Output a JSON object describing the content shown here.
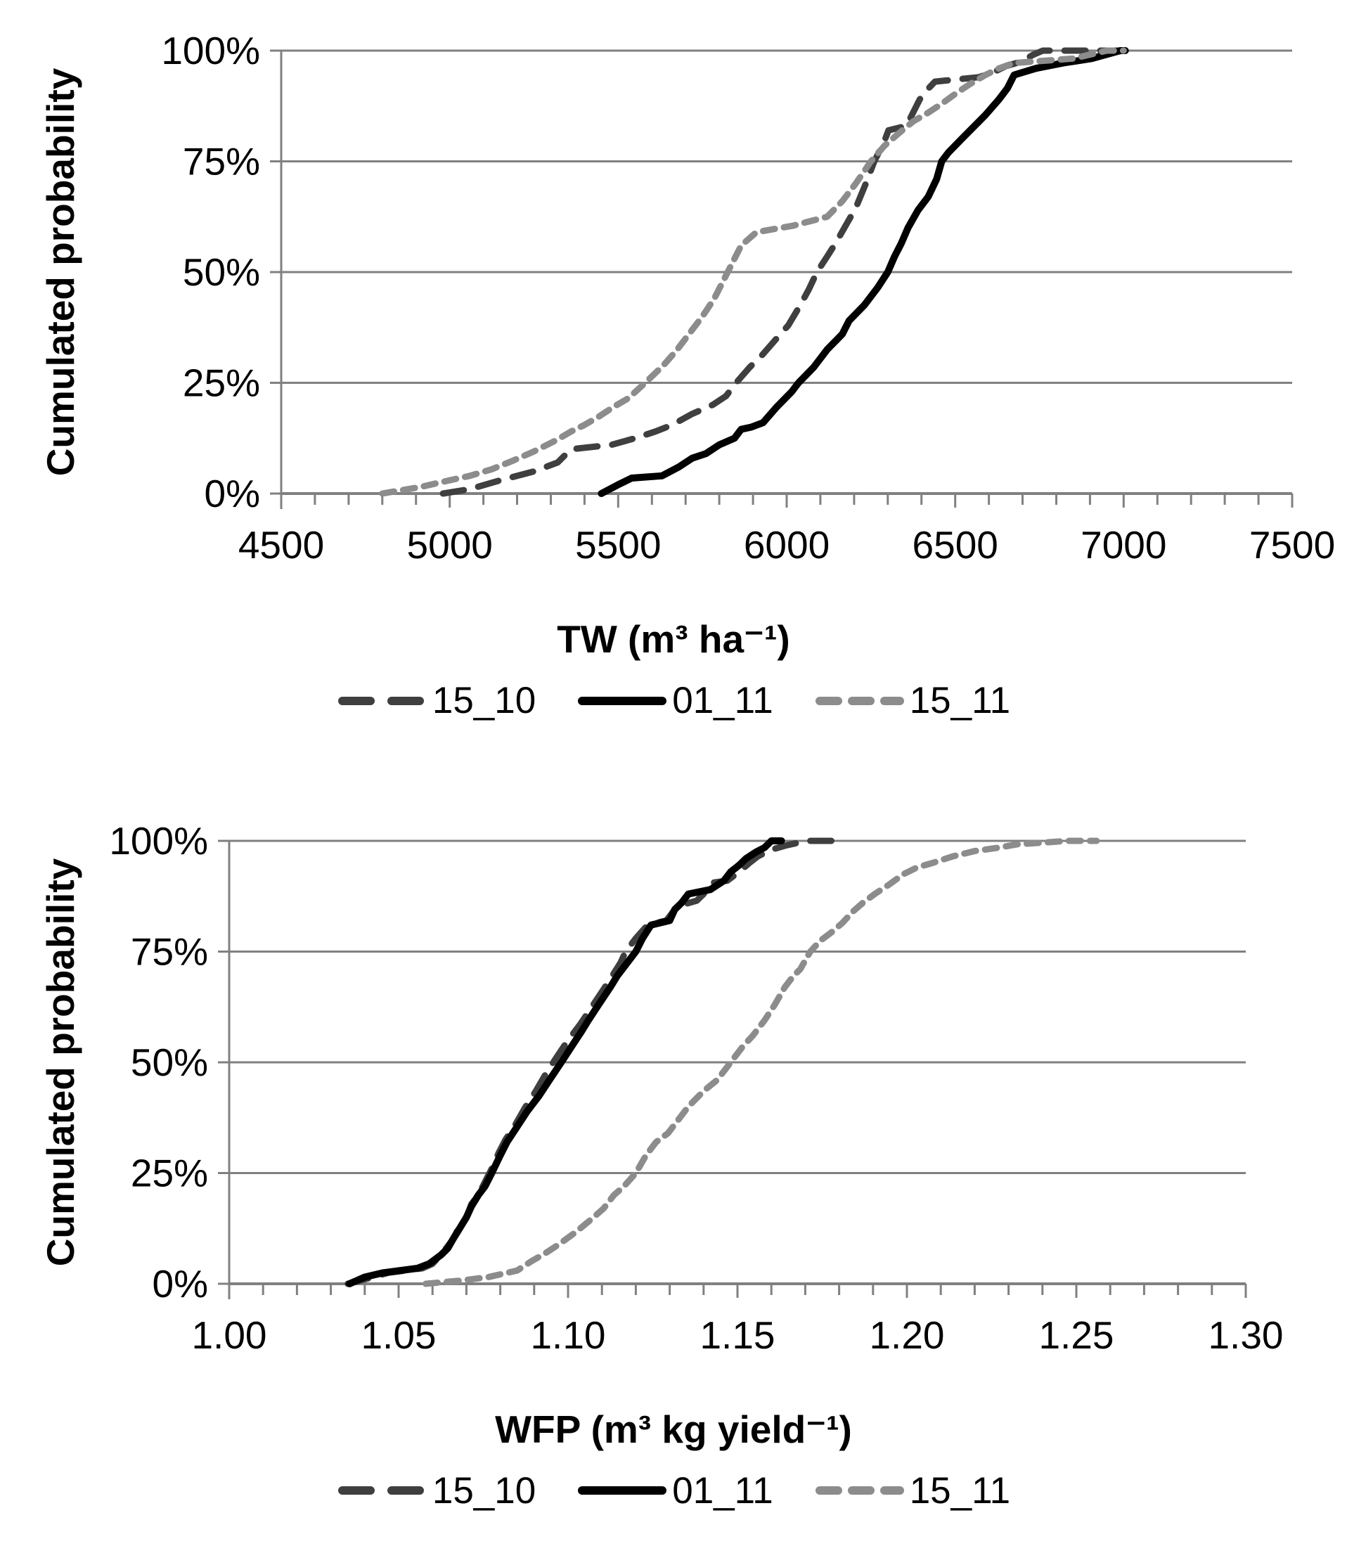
{
  "figure": {
    "background": "#ffffff",
    "grid_color": "#808080",
    "axis_color": "#808080",
    "text_color": "#000000"
  },
  "chart_data": [
    {
      "id": "tw-cdf",
      "type": "line",
      "subtype": "empirical-cumulative-distribution",
      "title": "",
      "xlabel": "TW (m³ ha⁻¹)",
      "ylabel": "Cumulated probability",
      "xlim": [
        4500,
        7500
      ],
      "ylim": [
        0,
        100
      ],
      "grid": "horizontal",
      "legend_position": "bottom",
      "x_major_ticks": [
        4500,
        5000,
        5500,
        6000,
        6500,
        7000,
        7500
      ],
      "x_major_labels": [
        "4500",
        "5000",
        "5500",
        "6000",
        "6500",
        "7000",
        "7500"
      ],
      "x_minor_step": 100,
      "y_ticks": [
        0,
        25,
        50,
        75,
        100
      ],
      "y_tick_labels": [
        "0%",
        "25%",
        "50%",
        "75%",
        "100%"
      ],
      "series": [
        {
          "name": "15_10",
          "color": "#3f3f3f",
          "dash": "long-dash",
          "points": [
            [
              4980,
              0
            ],
            [
              5060,
              1
            ],
            [
              5150,
              3
            ],
            [
              5250,
              5
            ],
            [
              5320,
              7
            ],
            [
              5360,
              10
            ],
            [
              5480,
              11
            ],
            [
              5550,
              12.5
            ],
            [
              5610,
              14
            ],
            [
              5660,
              15.5
            ],
            [
              5720,
              18
            ],
            [
              5780,
              20
            ],
            [
              5820,
              22
            ],
            [
              5850,
              25
            ],
            [
              5890,
              28.5
            ],
            [
              5930,
              31.5
            ],
            [
              5970,
              35
            ],
            [
              6005,
              38
            ],
            [
              6040,
              42.5
            ],
            [
              6065,
              46
            ],
            [
              6090,
              50
            ],
            [
              6120,
              53.5
            ],
            [
              6145,
              56.5
            ],
            [
              6175,
              60.5
            ],
            [
              6205,
              64.5
            ],
            [
              6235,
              70
            ],
            [
              6260,
              75
            ],
            [
              6280,
              78
            ],
            [
              6292,
              80
            ],
            [
              6302,
              82
            ],
            [
              6355,
              83
            ],
            [
              6375,
              86
            ],
            [
              6395,
              89
            ],
            [
              6415,
              91
            ],
            [
              6440,
              93
            ],
            [
              6570,
              94
            ],
            [
              6610,
              95
            ],
            [
              6650,
              96.5
            ],
            [
              6695,
              97.5
            ],
            [
              6730,
              99
            ],
            [
              6760,
              100
            ],
            [
              6990,
              100
            ]
          ]
        },
        {
          "name": "01_11",
          "color": "#000000",
          "dash": "solid",
          "points": [
            [
              5450,
              0
            ],
            [
              5500,
              2
            ],
            [
              5540,
              3.5
            ],
            [
              5630,
              4
            ],
            [
              5680,
              6
            ],
            [
              5720,
              8
            ],
            [
              5760,
              9
            ],
            [
              5800,
              11
            ],
            [
              5845,
              12.5
            ],
            [
              5865,
              14.5
            ],
            [
              5895,
              15
            ],
            [
              5930,
              16
            ],
            [
              5970,
              19.5
            ],
            [
              6015,
              23
            ],
            [
              6035,
              25
            ],
            [
              6080,
              28.5
            ],
            [
              6120,
              32.5
            ],
            [
              6165,
              36
            ],
            [
              6185,
              39
            ],
            [
              6230,
              42.5
            ],
            [
              6270,
              46.5
            ],
            [
              6300,
              50
            ],
            [
              6320,
              53.5
            ],
            [
              6340,
              56.5
            ],
            [
              6360,
              60
            ],
            [
              6390,
              64
            ],
            [
              6420,
              67
            ],
            [
              6445,
              71
            ],
            [
              6460,
              75
            ],
            [
              6480,
              77
            ],
            [
              6525,
              80.5
            ],
            [
              6590,
              85.5
            ],
            [
              6630,
              89
            ],
            [
              6655,
              91.5
            ],
            [
              6675,
              94.5
            ],
            [
              6740,
              96
            ],
            [
              6820,
              97.2
            ],
            [
              6905,
              98.2
            ],
            [
              6990,
              100
            ],
            [
              7005,
              100
            ]
          ]
        },
        {
          "name": "15_11",
          "color": "#8c8c8c",
          "dash": "short-dash",
          "points": [
            [
              4800,
              0
            ],
            [
              4915,
              1.5
            ],
            [
              5000,
              3
            ],
            [
              5060,
              4
            ],
            [
              5125,
              5.5
            ],
            [
              5190,
              7.5
            ],
            [
              5250,
              9.5
            ],
            [
              5315,
              12
            ],
            [
              5360,
              14
            ],
            [
              5400,
              15.5
            ],
            [
              5445,
              17.5
            ],
            [
              5485,
              19.5
            ],
            [
              5530,
              21.5
            ],
            [
              5580,
              25
            ],
            [
              5635,
              29
            ],
            [
              5675,
              32.5
            ],
            [
              5720,
              37
            ],
            [
              5750,
              40
            ],
            [
              5785,
              44
            ],
            [
              5825,
              50
            ],
            [
              5865,
              56
            ],
            [
              5910,
              59
            ],
            [
              6020,
              60.5
            ],
            [
              6120,
              62.5
            ],
            [
              6165,
              66
            ],
            [
              6205,
              70
            ],
            [
              6250,
              75
            ],
            [
              6290,
              78.5
            ],
            [
              6335,
              81.5
            ],
            [
              6375,
              84
            ],
            [
              6420,
              86
            ],
            [
              6460,
              88
            ],
            [
              6505,
              90.5
            ],
            [
              6545,
              92.5
            ],
            [
              6590,
              94.5
            ],
            [
              6630,
              96
            ],
            [
              6675,
              97.2
            ],
            [
              6850,
              98.2
            ],
            [
              6950,
              100
            ],
            [
              7000,
              100
            ]
          ]
        }
      ]
    },
    {
      "id": "wfp-cdf",
      "type": "line",
      "subtype": "empirical-cumulative-distribution",
      "title": "",
      "xlabel": "WFP (m³ kg yield⁻¹)",
      "ylabel": "Cumulated probability",
      "xlim": [
        1.0,
        1.3
      ],
      "ylim": [
        0,
        100
      ],
      "grid": "horizontal",
      "legend_position": "bottom",
      "x_major_ticks": [
        1.0,
        1.05,
        1.1,
        1.15,
        1.2,
        1.25,
        1.3
      ],
      "x_major_labels": [
        "1.00",
        "1.05",
        "1.10",
        "1.15",
        "1.20",
        "1.25",
        "1.30"
      ],
      "x_minor_step": 0.01,
      "y_ticks": [
        0,
        25,
        50,
        75,
        100
      ],
      "y_tick_labels": [
        "0%",
        "25%",
        "50%",
        "75%",
        "100%"
      ],
      "series": [
        {
          "name": "15_10",
          "color": "#3f3f3f",
          "dash": "long-dash",
          "points": [
            [
              1.035,
              0
            ],
            [
              1.04,
              1
            ],
            [
              1.047,
              2.5
            ],
            [
              1.057,
              3.5
            ],
            [
              1.06,
              4.5
            ],
            [
              1.063,
              7
            ],
            [
              1.066,
              10
            ],
            [
              1.068,
              13
            ],
            [
              1.07,
              15
            ],
            [
              1.0715,
              18
            ],
            [
              1.0735,
              20
            ],
            [
              1.0755,
              23
            ],
            [
              1.0775,
              26
            ],
            [
              1.0795,
              29.5
            ],
            [
              1.0815,
              32.5
            ],
            [
              1.0845,
              36
            ],
            [
              1.0875,
              40
            ],
            [
              1.0905,
              43.5
            ],
            [
              1.0935,
              47.5
            ],
            [
              1.0965,
              51
            ],
            [
              1.1,
              55
            ],
            [
              1.1035,
              58.5
            ],
            [
              1.107,
              62.5
            ],
            [
              1.1105,
              66.5
            ],
            [
              1.113,
              69.5
            ],
            [
              1.1155,
              72.5
            ],
            [
              1.117,
              75
            ],
            [
              1.12,
              78
            ],
            [
              1.1235,
              81
            ],
            [
              1.129,
              82
            ],
            [
              1.1315,
              84.5
            ],
            [
              1.1335,
              85.5
            ],
            [
              1.138,
              86.5
            ],
            [
              1.14,
              88
            ],
            [
              1.142,
              90.5
            ],
            [
              1.147,
              91
            ],
            [
              1.1505,
              93
            ],
            [
              1.1535,
              95
            ],
            [
              1.156,
              96.5
            ],
            [
              1.16,
              98
            ],
            [
              1.1645,
              99
            ],
            [
              1.1705,
              100
            ],
            [
              1.182,
              100
            ]
          ]
        },
        {
          "name": "01_11",
          "color": "#000000",
          "dash": "solid",
          "points": [
            [
              1.0355,
              0
            ],
            [
              1.04,
              1.5
            ],
            [
              1.0455,
              2.5
            ],
            [
              1.0555,
              3.5
            ],
            [
              1.059,
              4.5
            ],
            [
              1.0625,
              6.5
            ],
            [
              1.0645,
              8
            ],
            [
              1.066,
              10
            ],
            [
              1.068,
              12.5
            ],
            [
              1.07,
              15
            ],
            [
              1.0715,
              17.5
            ],
            [
              1.0735,
              20
            ],
            [
              1.0755,
              22
            ],
            [
              1.0775,
              25
            ],
            [
              1.08,
              29
            ],
            [
              1.082,
              32
            ],
            [
              1.085,
              35.5
            ],
            [
              1.088,
              39
            ],
            [
              1.0915,
              42.5
            ],
            [
              1.0945,
              46
            ],
            [
              1.098,
              50
            ],
            [
              1.101,
              53.5
            ],
            [
              1.104,
              57
            ],
            [
              1.106,
              59.5
            ],
            [
              1.109,
              63
            ],
            [
              1.1125,
              67
            ],
            [
              1.1145,
              69.5
            ],
            [
              1.1175,
              72.5
            ],
            [
              1.12,
              75
            ],
            [
              1.122,
              78
            ],
            [
              1.1245,
              81
            ],
            [
              1.13,
              82
            ],
            [
              1.1315,
              84.5
            ],
            [
              1.1335,
              86
            ],
            [
              1.1355,
              88
            ],
            [
              1.142,
              89
            ],
            [
              1.146,
              91
            ],
            [
              1.148,
              93
            ],
            [
              1.1505,
              94.5
            ],
            [
              1.1525,
              96
            ],
            [
              1.1555,
              97.5
            ],
            [
              1.158,
              98.5
            ],
            [
              1.16,
              100
            ],
            [
              1.163,
              100
            ]
          ]
        },
        {
          "name": "15_11",
          "color": "#8c8c8c",
          "dash": "short-dash",
          "points": [
            [
              1.058,
              0
            ],
            [
              1.068,
              0.7
            ],
            [
              1.0765,
              1.5
            ],
            [
              1.085,
              3
            ],
            [
              1.089,
              5
            ],
            [
              1.0935,
              7
            ],
            [
              1.0975,
              9
            ],
            [
              1.102,
              11.5
            ],
            [
              1.106,
              14
            ],
            [
              1.1105,
              17
            ],
            [
              1.1135,
              20
            ],
            [
              1.1165,
              22
            ],
            [
              1.12,
              25
            ],
            [
              1.123,
              29
            ],
            [
              1.126,
              32
            ],
            [
              1.1295,
              34
            ],
            [
              1.1325,
              37
            ],
            [
              1.1355,
              40
            ],
            [
              1.14,
              43.5
            ],
            [
              1.144,
              46
            ],
            [
              1.148,
              50
            ],
            [
              1.1515,
              53.5
            ],
            [
              1.1545,
              56
            ],
            [
              1.158,
              59.5
            ],
            [
              1.161,
              63
            ],
            [
              1.164,
              67
            ],
            [
              1.1665,
              69.5
            ],
            [
              1.1685,
              71
            ],
            [
              1.1715,
              75
            ],
            [
              1.1745,
              77.5
            ],
            [
              1.178,
              79.5
            ],
            [
              1.181,
              81.5
            ],
            [
              1.184,
              84
            ],
            [
              1.187,
              86
            ],
            [
              1.1905,
              88
            ],
            [
              1.1945,
              90
            ],
            [
              1.199,
              92.5
            ],
            [
              1.203,
              94
            ],
            [
              1.2075,
              95
            ],
            [
              1.2135,
              96.5
            ],
            [
              1.22,
              97.7
            ],
            [
              1.2265,
              98.4
            ],
            [
              1.2325,
              99.2
            ],
            [
              1.2475,
              100
            ],
            [
              1.256,
              100
            ]
          ]
        }
      ]
    }
  ]
}
